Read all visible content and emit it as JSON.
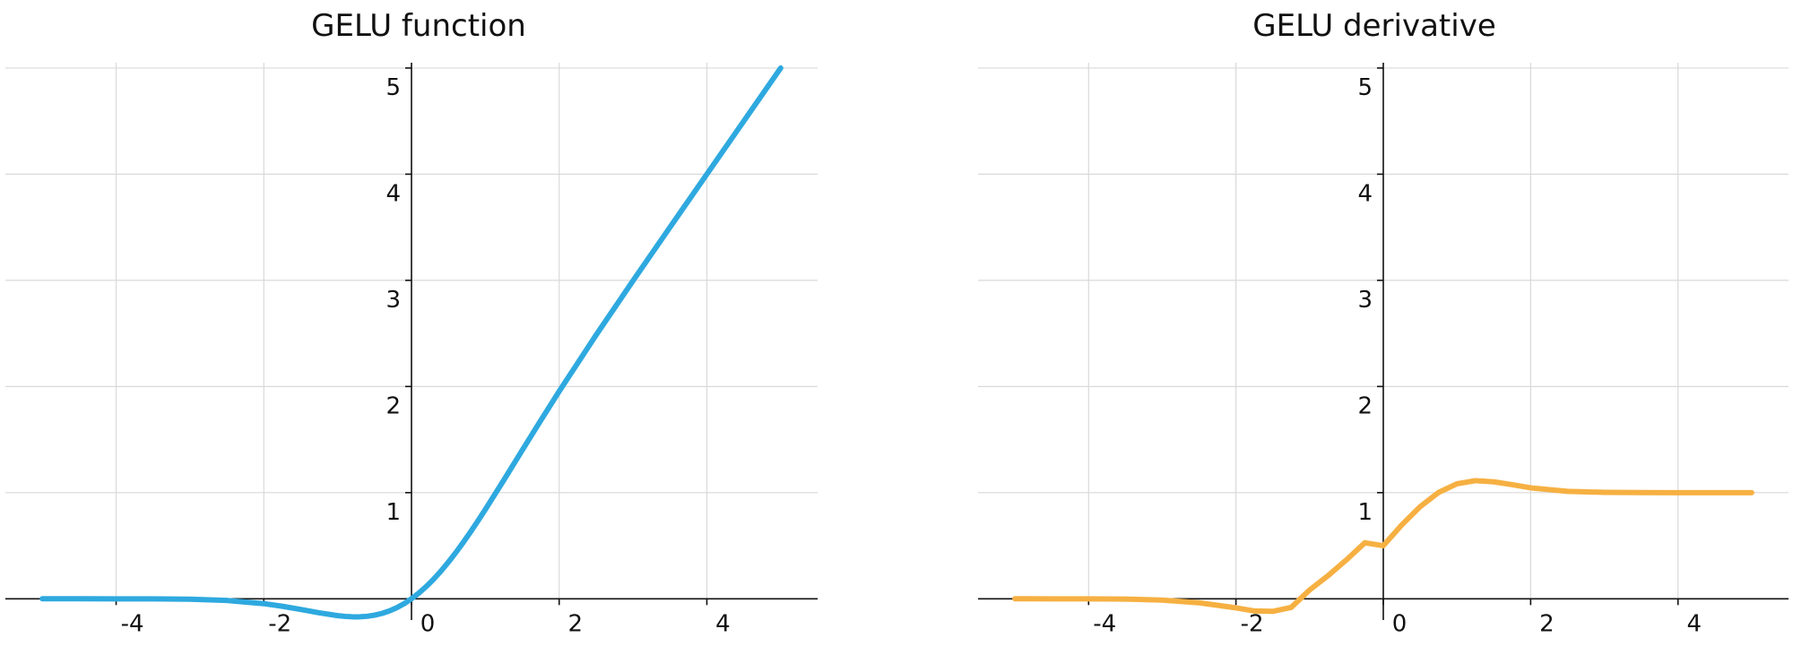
{
  "chart_data": [
    {
      "type": "line",
      "title": "GELU function",
      "xlabel": "",
      "ylabel": "",
      "xlim": [
        -5.5,
        5.5
      ],
      "ylim": [
        -0.2,
        5.05
      ],
      "grid": true,
      "xticks": [
        -4,
        -2,
        0,
        2,
        4
      ],
      "yticks": [
        1,
        2,
        3,
        4,
        5
      ],
      "series": [
        {
          "color": "#2ea9df",
          "x": [
            -5.0,
            -4.5,
            -4.0,
            -3.5,
            -3.0,
            -2.5,
            -2.0,
            -1.75,
            -1.5,
            -1.25,
            -1.0,
            -0.9,
            -0.8,
            -0.75,
            -0.7,
            -0.6,
            -0.5,
            -0.4,
            -0.3,
            -0.2,
            -0.1,
            0.0,
            0.1,
            0.2,
            0.3,
            0.4,
            0.5,
            0.6,
            0.7,
            0.8,
            0.9,
            1.0,
            1.25,
            1.5,
            1.75,
            2.0,
            2.5,
            3.0,
            3.5,
            4.0,
            4.5,
            5.0
          ],
          "y": [
            0.0,
            0.0,
            -0.0001,
            -0.0008,
            -0.004,
            -0.0155,
            -0.0455,
            -0.0702,
            -0.1002,
            -0.132,
            -0.1587,
            -0.1657,
            -0.1695,
            -0.17,
            -0.1694,
            -0.1646,
            -0.1543,
            -0.1379,
            -0.1148,
            -0.0841,
            -0.046,
            0.0,
            0.054,
            0.1159,
            0.1852,
            0.2621,
            0.3457,
            0.4354,
            0.5306,
            0.6305,
            0.7343,
            0.8413,
            1.118,
            1.3998,
            1.6798,
            1.9545,
            2.4845,
            2.996,
            3.4992,
            3.9999,
            4.5,
            5.0
          ]
        }
      ]
    },
    {
      "type": "line",
      "title": "GELU derivative",
      "xlabel": "",
      "ylabel": "",
      "xlim": [
        -5.5,
        5.5
      ],
      "ylim": [
        -0.2,
        5.05
      ],
      "grid": true,
      "xticks": [
        -4,
        -2,
        0,
        2,
        4
      ],
      "yticks": [
        1,
        2,
        3,
        4,
        5
      ],
      "series": [
        {
          "color": "#f6b042",
          "x": [
            -5.0,
            -4.5,
            -4.0,
            -3.5,
            -3.0,
            -2.5,
            -2.0,
            -1.75,
            -1.5,
            -1.25,
            -1.0,
            -0.75,
            -0.5,
            -0.25,
            0.0,
            0.25,
            0.5,
            0.75,
            1.0,
            1.25,
            1.5,
            1.75,
            2.0,
            2.5,
            3.0,
            3.5,
            4.0,
            4.5,
            5.0
          ],
          "y": [
            0.0,
            -0.0001,
            -0.0005,
            -0.003,
            -0.0119,
            -0.0376,
            -0.0852,
            -0.115,
            -0.1179,
            -0.0816,
            0.0833,
            0.218,
            0.3674,
            0.528,
            0.5,
            0.696,
            0.8675,
            1.0015,
            1.0833,
            1.113,
            1.102,
            1.075,
            1.0452,
            1.0121,
            1.0029,
            1.0006,
            1.0001,
            1.0,
            1.0
          ]
        }
      ]
    }
  ]
}
